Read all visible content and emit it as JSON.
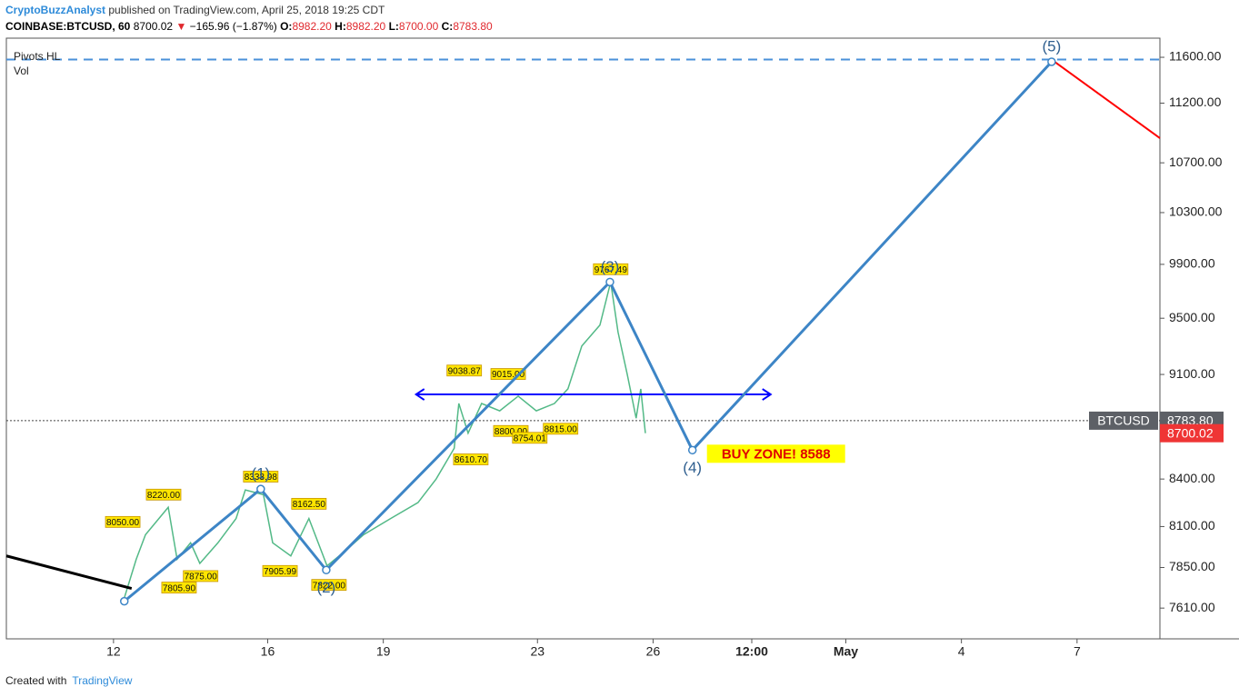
{
  "header": {
    "author": "CryptoBuzzAnalyst",
    "published": "published on TradingView.com, April 25, 2018 19:25 CDT"
  },
  "symbol_bar": {
    "symbol": "COINBASE:BTCUSD, 60",
    "price": "8700.02",
    "arrow": "▼",
    "change": "−165.96 (−1.87%)",
    "open_label": "O:",
    "open": "8982.20",
    "high_label": "H:",
    "high": "8982.20",
    "low_label": "L:",
    "low": "8700.00",
    "close_label": "C:",
    "close": "8783.80"
  },
  "indicators": [
    "Pivots HL",
    "Vol"
  ],
  "footer": {
    "created": "Created with",
    "brand": "TradingView"
  },
  "chart_data": {
    "type": "line",
    "log": true,
    "xlim": [
      9.22,
      39.15
    ],
    "ylim": [
      7433,
      11771
    ],
    "xticks": [
      12,
      16,
      19,
      23,
      26,
      {
        "value": 28.56,
        "label": "12:00"
      },
      {
        "value": 31,
        "label": "May"
      },
      {
        "value": 34,
        "label": "4"
      },
      {
        "value": 37,
        "label": "7"
      }
    ],
    "yticks": [
      {
        "value": 11600,
        "label": "11600.00"
      },
      {
        "value": 11200,
        "label": "11200.00"
      },
      {
        "value": 10700,
        "label": "10700.00"
      },
      {
        "value": 10300,
        "label": "10300.00"
      },
      {
        "value": 9900,
        "label": "9900.00"
      },
      {
        "value": 9500,
        "label": "9500.00"
      },
      {
        "value": 9100,
        "label": "9100.00"
      },
      {
        "value": 8400,
        "label": "8400.00"
      },
      {
        "value": 8100,
        "label": "8100.00"
      },
      {
        "value": 7850,
        "label": "7850.00"
      },
      {
        "value": 7610,
        "label": "7610.00"
      }
    ],
    "series": [
      {
        "name": "BTCUSD",
        "color": "#53b987",
        "x": [
          12.24,
          12.59,
          12.83,
          13.42,
          13.65,
          14.0,
          14.24,
          14.71,
          15.18,
          15.42,
          15.89,
          16.13,
          16.6,
          17.07,
          17.54,
          18.01,
          18.49,
          19.19,
          19.9,
          20.37,
          20.84,
          20.96,
          21.2,
          21.55,
          22.02,
          22.5,
          22.97,
          23.44,
          23.79,
          24.15,
          24.62,
          24.9,
          25.09,
          25.33,
          25.56,
          25.68,
          25.8
        ],
        "values": [
          7640,
          7900,
          8050,
          8220,
          7900,
          8000,
          7875,
          8000,
          8150,
          8330,
          8300,
          8000,
          7920,
          8150,
          7860,
          7950,
          8050,
          8150,
          8250,
          8400,
          8600,
          8900,
          8700,
          8900,
          8850,
          8950,
          8850,
          8900,
          9000,
          9300,
          9450,
          9767,
          9400,
          9100,
          8800,
          9000,
          8700
        ]
      }
    ],
    "waves": {
      "color": "#3d85c6",
      "x": [
        12.28,
        15.82,
        17.52,
        24.88,
        27.02,
        36.34
      ],
      "values": [
        7650,
        8336,
        7835,
        9767,
        8588,
        11560
      ],
      "labels": [
        null,
        "(1)",
        "(2)",
        "(3)",
        "(4)",
        "(5)"
      ]
    },
    "projection": {
      "color": "#ff0000",
      "x": [
        36.42,
        39.15
      ],
      "values": [
        11560,
        10904
      ]
    },
    "trendline": {
      "color": "#000000",
      "x": [
        9.22,
        12.47
      ],
      "values": [
        7920,
        7725
      ]
    },
    "range_arrow": {
      "color": "#0000ff",
      "x": [
        19.85,
        29.05
      ],
      "value": 8962
    },
    "resistance": {
      "color": "#4a90d9",
      "value": 11580
    },
    "buy_zone": {
      "text": "BUY ZONE! 8588"
    },
    "last_price": {
      "value": 8783.8,
      "label": "8783.80"
    },
    "current_price": {
      "value": 8700.02,
      "label": "8700.02"
    },
    "pivots": [
      {
        "label": "8050.00",
        "value": 8050,
        "x": 12.24,
        "kind": "high"
      },
      {
        "label": "8220.00",
        "value": 8220,
        "x": 13.3,
        "kind": "high"
      },
      {
        "label": "8333.98",
        "value": 8333.98,
        "x": 15.82,
        "kind": "high"
      },
      {
        "label": "7805.90",
        "value": 7805.9,
        "x": 13.7,
        "kind": "low"
      },
      {
        "label": "7875.00",
        "value": 7875,
        "x": 14.26,
        "kind": "low"
      },
      {
        "label": "8162.50",
        "value": 8162.5,
        "x": 17.07,
        "kind": "high"
      },
      {
        "label": "7905.99",
        "value": 7905.99,
        "x": 16.32,
        "kind": "low"
      },
      {
        "label": "7822.00",
        "value": 7822,
        "x": 17.59,
        "kind": "low"
      },
      {
        "label": "9038.87",
        "value": 9038.87,
        "x": 21.1,
        "kind": "high"
      },
      {
        "label": "9015.00",
        "value": 9015,
        "x": 22.24,
        "kind": "high"
      },
      {
        "label": "8610.70",
        "value": 8610.7,
        "x": 21.27,
        "kind": "low"
      },
      {
        "label": "8800.00",
        "value": 8800,
        "x": 22.31,
        "kind": "low"
      },
      {
        "label": "8754.01",
        "value": 8754.01,
        "x": 22.8,
        "kind": "low"
      },
      {
        "label": "8815.00",
        "value": 8815,
        "x": 23.6,
        "kind": "low"
      },
      {
        "label": "9767.49",
        "value": 9767.49,
        "x": 24.9,
        "kind": "high"
      }
    ]
  }
}
